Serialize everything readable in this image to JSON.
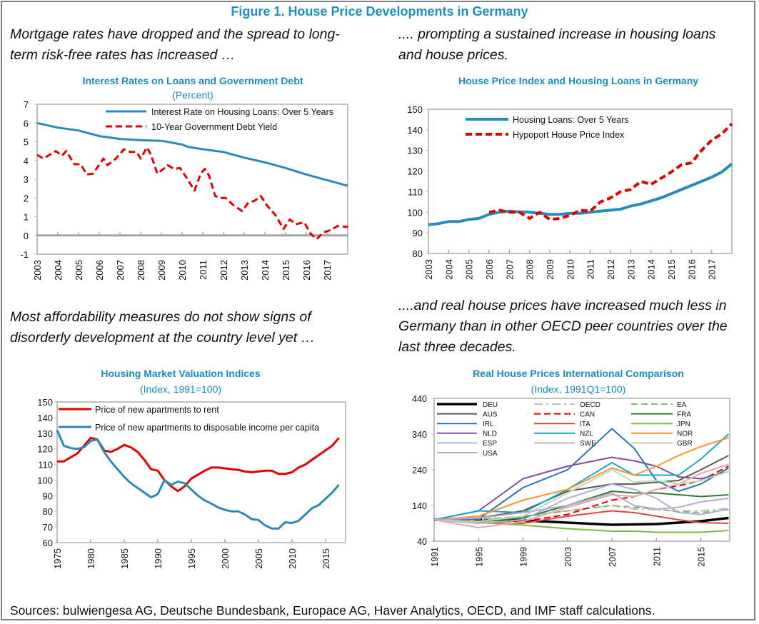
{
  "figure_title": "Figure 1. House Price Developments in Germany",
  "intro_top_left": "Mortgage rates have dropped and the spread to long-term risk-free rates has increased …",
  "intro_top_right": ".... prompting a sustained increase in housing loans and house prices.",
  "intro_bottom_left": "Most affordability measures do not show signs of disorderly development at the country level yet …",
  "intro_bottom_right": "....and real house prices have increased much less in Germany than in other OECD peer countries over the last three decades.",
  "sources": "Sources: bulwiengesa AG, Deutsche Bundesbank, Europace AG, Haver Analytics, OECD, and IMF staff calculations.",
  "chart_data": [
    {
      "type": "line",
      "title": "Interest Rates on Loans and Government Debt",
      "subtitle": "(Percent)",
      "xlim": [
        2003,
        2018
      ],
      "ylim": [
        -1,
        7
      ],
      "xticks": [
        2003,
        2004,
        2005,
        2006,
        2007,
        2008,
        2009,
        2010,
        2011,
        2012,
        2013,
        2014,
        2015,
        2016,
        2017
      ],
      "yticks": [
        -1,
        0,
        1,
        2,
        3,
        4,
        5,
        6,
        7
      ],
      "legend": "top-right",
      "series": [
        {
          "name": "Interest Rate on Housing Loans: Over 5 Years",
          "color": "#2a8bb8",
          "style": "solid",
          "x": [
            2003,
            2004,
            2005,
            2006,
            2007,
            2008,
            2009,
            2010,
            2010.3,
            2011,
            2012,
            2013,
            2014,
            2015,
            2016,
            2017,
            2018
          ],
          "y": [
            6.0,
            5.75,
            5.6,
            5.3,
            5.15,
            5.08,
            5.05,
            4.85,
            4.72,
            4.6,
            4.45,
            4.15,
            3.9,
            3.6,
            3.25,
            2.95,
            2.65
          ]
        },
        {
          "name": "10-Year Government Debt Yield",
          "color": "#e00000",
          "style": "dashed",
          "x": [
            2003,
            2003.3,
            2003.9,
            2004.2,
            2004.4,
            2004.8,
            2005.1,
            2005.4,
            2005.7,
            2006.2,
            2006.4,
            2006.8,
            2007.2,
            2007.5,
            2007.8,
            2008.0,
            2008.3,
            2008.5,
            2008.8,
            2009.1,
            2009.3,
            2009.6,
            2009.9,
            2010.2,
            2010.6,
            2010.9,
            2011.1,
            2011.3,
            2011.6,
            2011.8,
            2012.1,
            2012.5,
            2012.9,
            2013.2,
            2013.5,
            2013.8,
            2014.1,
            2014.5,
            2014.9,
            2015.2,
            2015.5,
            2015.9,
            2016.2,
            2016.5,
            2016.8,
            2017.2,
            2017.5,
            2018
          ],
          "y": [
            4.3,
            4.1,
            4.5,
            4.25,
            4.5,
            3.8,
            3.8,
            3.25,
            3.3,
            4.1,
            3.75,
            4.1,
            4.6,
            4.45,
            4.45,
            4.1,
            4.7,
            4.3,
            3.3,
            3.55,
            3.75,
            3.55,
            3.6,
            3.1,
            2.4,
            3.3,
            3.55,
            3.2,
            2.1,
            2.0,
            2.0,
            1.6,
            1.3,
            1.75,
            1.85,
            2.1,
            1.6,
            1.1,
            0.35,
            0.85,
            0.6,
            0.7,
            0.1,
            -0.2,
            0.15,
            0.3,
            0.5,
            0.45
          ]
        }
      ]
    },
    {
      "type": "line",
      "title": "House Price Index and Housing Loans in Germany",
      "xlim": [
        2003,
        2018
      ],
      "ylim": [
        80,
        150
      ],
      "xticks": [
        2003,
        2004,
        2005,
        2006,
        2007,
        2008,
        2009,
        2010,
        2011,
        2012,
        2013,
        2014,
        2015,
        2016,
        2017
      ],
      "yticks": [
        80,
        90,
        100,
        110,
        120,
        130,
        140,
        150
      ],
      "legend": "top-left",
      "series": [
        {
          "name": "Housing Loans: Over 5 Years",
          "color": "#2a8bb8",
          "style": "solid",
          "x": [
            2003,
            2003.5,
            2004,
            2004.5,
            2005,
            2005.5,
            2006,
            2006.5,
            2007,
            2007.5,
            2008,
            2008.5,
            2009,
            2009.5,
            2010,
            2010.5,
            2011,
            2011.5,
            2012,
            2012.5,
            2013,
            2013.5,
            2014,
            2014.5,
            2015,
            2015.5,
            2016,
            2016.5,
            2017,
            2017.5,
            2018
          ],
          "y": [
            94,
            94.5,
            95.5,
            95.5,
            96.5,
            97,
            99,
            100,
            100.5,
            100.2,
            100,
            99.5,
            99,
            99,
            99.5,
            99.5,
            100,
            100.5,
            101,
            101.5,
            103,
            104,
            105.5,
            107,
            109,
            111,
            113,
            115,
            117,
            119.5,
            123.5
          ]
        },
        {
          "name": "Hypoport House Price Index",
          "color": "#e00000",
          "style": "dashed",
          "x": [
            2006,
            2006.5,
            2007,
            2007.5,
            2008,
            2008.5,
            2009,
            2009.5,
            2010,
            2010.5,
            2011,
            2011.5,
            2012,
            2012.5,
            2013,
            2013.5,
            2014,
            2014.5,
            2015,
            2015.5,
            2016,
            2016.5,
            2017,
            2017.5,
            2018
          ],
          "y": [
            100,
            101,
            100,
            100,
            97,
            100,
            96.5,
            97,
            98.5,
            101,
            100.5,
            105,
            107,
            110,
            111,
            115,
            113.5,
            116.5,
            119.5,
            123,
            124,
            130,
            135,
            138,
            143
          ]
        }
      ]
    },
    {
      "type": "line",
      "title": "Housing Market Valuation Indices",
      "subtitle": "(Index, 1991=100)",
      "xlim": [
        1975,
        2018
      ],
      "ylim": [
        60,
        150
      ],
      "xticks": [
        1975,
        1980,
        1985,
        1990,
        1995,
        2000,
        2005,
        2010,
        2015
      ],
      "yticks": [
        60,
        70,
        80,
        90,
        100,
        110,
        120,
        130,
        140,
        150
      ],
      "legend": "top",
      "series": [
        {
          "name": "Price of new apartments to rent",
          "color": "#e00000",
          "style": "solid",
          "x": [
            1975,
            1976,
            1978,
            1980,
            1981,
            1982,
            1983,
            1984,
            1985,
            1986,
            1987,
            1988,
            1989,
            1990,
            1991,
            1992,
            1993,
            1994,
            1995,
            1996,
            1997,
            1998,
            1999,
            2000,
            2001,
            2002,
            2003,
            2004,
            2005,
            2006,
            2007,
            2008,
            2009,
            2010,
            2011,
            2012,
            2013,
            2014,
            2015,
            2016,
            2017
          ],
          "y": [
            112,
            112,
            117,
            127,
            126,
            119,
            118,
            120,
            122.5,
            121,
            118,
            113,
            107,
            106,
            100,
            96,
            93,
            96,
            101,
            103.5,
            106,
            108,
            108,
            107.5,
            107,
            106.5,
            105.5,
            105,
            105.5,
            106,
            106,
            104,
            104,
            105,
            108,
            110,
            113,
            116,
            119,
            122,
            127
          ]
        },
        {
          "name": "Price of new apartments to disposable income per capita",
          "color": "#2a8bb8",
          "style": "solid",
          "x": [
            1975,
            1976,
            1977,
            1978,
            1979,
            1980,
            1981,
            1982,
            1983,
            1984,
            1985,
            1986,
            1987,
            1988,
            1989,
            1990,
            1991,
            1992,
            1993,
            1994,
            1995,
            1996,
            1997,
            1998,
            1999,
            2000,
            2001,
            2002,
            2003,
            2004,
            2005,
            2006,
            2007,
            2008,
            2009,
            2010,
            2011,
            2012,
            2013,
            2014,
            2015,
            2016,
            2017
          ],
          "y": [
            132,
            122,
            120.5,
            120,
            121,
            125,
            126,
            118,
            112,
            107,
            102,
            98,
            95,
            92,
            89,
            91,
            100,
            97,
            99,
            98,
            94,
            90,
            87,
            85,
            82.5,
            81,
            80,
            80,
            78,
            75,
            74.5,
            71,
            69,
            69,
            73,
            72.5,
            74,
            78,
            82,
            84,
            88,
            92,
            97
          ]
        }
      ]
    },
    {
      "type": "line",
      "title": "Real House Prices International Comparison",
      "subtitle": "(Index, 1991Q1=100)",
      "xlim": [
        1991,
        2017.6
      ],
      "ylim": [
        40,
        440
      ],
      "xticks": [
        1991,
        1995,
        1999,
        2003,
        2007,
        2011,
        2015
      ],
      "yticks": [
        40,
        140,
        240,
        340,
        440
      ],
      "legend": "top",
      "x": [
        1991,
        1995,
        1999,
        2003,
        2007,
        2009,
        2011,
        2013,
        2015,
        2017.5
      ],
      "series": [
        {
          "name": "DEU",
          "color": "#000000",
          "style": "solid",
          "y": [
            100,
            100,
            98,
            92,
            86,
            87,
            88,
            92,
            96,
            105
          ]
        },
        {
          "name": "OECD",
          "color": "#bdbdbd",
          "style": "dash-dot",
          "y": [
            100,
            100,
            110,
            125,
            140,
            130,
            128,
            125,
            125,
            132
          ]
        },
        {
          "name": "EA",
          "color": "#8db87a",
          "style": "dashed",
          "y": [
            100,
            102,
            108,
            125,
            140,
            135,
            130,
            122,
            120,
            128
          ]
        },
        {
          "name": "AUS",
          "color": "#595959",
          "style": "solid",
          "y": [
            100,
            105,
            125,
            180,
            200,
            200,
            205,
            210,
            240,
            280
          ]
        },
        {
          "name": "CAN",
          "color": "#e00000",
          "style": "dashed",
          "y": [
            100,
            98,
            95,
            115,
            155,
            165,
            185,
            195,
            210,
            250
          ]
        },
        {
          "name": "FRA",
          "color": "#2e7d32",
          "style": "solid",
          "y": [
            100,
            95,
            105,
            140,
            180,
            175,
            175,
            170,
            165,
            170
          ]
        },
        {
          "name": "IRL",
          "color": "#2e75b6",
          "style": "solid",
          "y": [
            100,
            102,
            190,
            240,
            355,
            300,
            210,
            180,
            200,
            245
          ]
        },
        {
          "name": "ITA",
          "color": "#e04545",
          "style": "solid",
          "y": [
            100,
            92,
            90,
            110,
            125,
            120,
            110,
            100,
            92,
            90
          ]
        },
        {
          "name": "JPN",
          "color": "#7cba3e",
          "style": "solid",
          "y": [
            100,
            92,
            85,
            75,
            68,
            68,
            65,
            65,
            65,
            70
          ]
        },
        {
          "name": "NLD",
          "color": "#7f4ea3",
          "style": "solid",
          "y": [
            100,
            125,
            215,
            250,
            275,
            265,
            250,
            220,
            215,
            235
          ]
        },
        {
          "name": "NZL",
          "color": "#17a9c2",
          "style": "solid",
          "y": [
            100,
            125,
            120,
            185,
            260,
            225,
            225,
            225,
            270,
            340
          ]
        },
        {
          "name": "NOR",
          "color": "#f79433",
          "style": "solid",
          "y": [
            100,
            110,
            155,
            185,
            245,
            225,
            250,
            280,
            305,
            330
          ]
        },
        {
          "name": "ESP",
          "color": "#a6b8cf",
          "style": "solid",
          "y": [
            100,
            90,
            100,
            160,
            200,
            185,
            160,
            120,
            115,
            130
          ]
        },
        {
          "name": "SWE",
          "color": "#e8a6a9",
          "style": "solid",
          "y": [
            100,
            78,
            95,
            135,
            170,
            165,
            185,
            200,
            230,
            255
          ]
        },
        {
          "name": "GBR",
          "color": "#c3d6b0",
          "style": "solid",
          "y": [
            100,
            95,
            110,
            175,
            240,
            205,
            210,
            200,
            210,
            235
          ]
        },
        {
          "name": "USA",
          "color": "#b7a8cf",
          "style": "solid",
          "y": [
            100,
            105,
            120,
            140,
            175,
            140,
            130,
            135,
            150,
            160
          ]
        }
      ]
    }
  ]
}
